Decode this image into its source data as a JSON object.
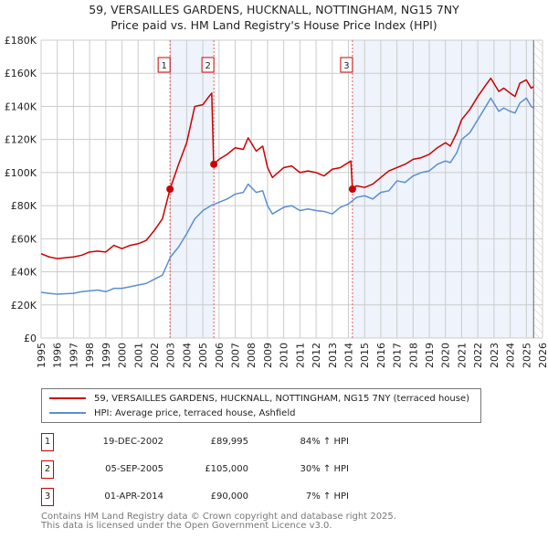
{
  "title_line1": "59, VERSAILLES GARDENS, HUCKNALL, NOTTINGHAM, NG15 7NY",
  "title_line2": "Price paid vs. HM Land Registry's House Price Index (HPI)",
  "colors": {
    "property": "#cc0000",
    "hpi": "#5b8fd0",
    "shade": "#eef3fc"
  },
  "chart_data": {
    "type": "line",
    "title": "Price paid vs. HM Land Registry's House Price Index (HPI)",
    "xlim": [
      1995,
      2026
    ],
    "ylim": [
      0,
      180000
    ],
    "x_ticks": [
      "1995",
      "1996",
      "1997",
      "1998",
      "1999",
      "2000",
      "2001",
      "2002",
      "2003",
      "2004",
      "2005",
      "2006",
      "2007",
      "2008",
      "2009",
      "2010",
      "2011",
      "2012",
      "2013",
      "2014",
      "2015",
      "2016",
      "2017",
      "2018",
      "2019",
      "2020",
      "2021",
      "2022",
      "2023",
      "2024",
      "2025",
      "2026"
    ],
    "y_ticks": [
      {
        "value": 0,
        "label": "£0"
      },
      {
        "value": 20000,
        "label": "£20K"
      },
      {
        "value": 40000,
        "label": "£40K"
      },
      {
        "value": 60000,
        "label": "£60K"
      },
      {
        "value": 80000,
        "label": "£80K"
      },
      {
        "value": 100000,
        "label": "£100K"
      },
      {
        "value": 120000,
        "label": "£120K"
      },
      {
        "value": 140000,
        "label": "£140K"
      },
      {
        "value": 160000,
        "label": "£160K"
      },
      {
        "value": 180000,
        "label": "£180K"
      }
    ],
    "grid": true,
    "series": [
      {
        "name": "59, VERSAILLES GARDENS, HUCKNALL, NOTTINGHAM, NG15 7NY (terraced house)",
        "color": "#cc0000",
        "x": [
          1995,
          1995.5,
          1996,
          1996.5,
          1997,
          1997.5,
          1998,
          1998.5,
          1999,
          1999.5,
          2000,
          2000.5,
          2001,
          2001.5,
          2002,
          2002.5,
          2002.97,
          2003.5,
          2004,
          2004.5,
          2005,
          2005.3,
          2005.55,
          2005.67,
          2006,
          2006.5,
          2007,
          2007.5,
          2007.8,
          2008.3,
          2008.7,
          2009,
          2009.3,
          2010,
          2010.5,
          2011,
          2011.5,
          2012,
          2012.5,
          2013,
          2013.5,
          2014.15,
          2014.25,
          2014.5,
          2015,
          2015.5,
          2016,
          2016.5,
          2017,
          2017.5,
          2018,
          2018.5,
          2019,
          2019.5,
          2020,
          2020.3,
          2020.7,
          2021,
          2021.5,
          2022,
          2022.5,
          2022.8,
          2023.3,
          2023.6,
          2024,
          2024.3,
          2024.6,
          2025,
          2025.3,
          2025.45
        ],
        "y": [
          51000,
          49000,
          48000,
          48500,
          49000,
          50000,
          52000,
          52500,
          52000,
          56000,
          54000,
          56000,
          57000,
          59000,
          65000,
          72000,
          89995,
          105000,
          118000,
          140000,
          141000,
          145000,
          148000,
          105000,
          108000,
          111000,
          115000,
          114000,
          121000,
          113000,
          116000,
          103000,
          97000,
          103000,
          104000,
          100000,
          101000,
          100000,
          98000,
          102000,
          103000,
          107000,
          90000,
          92000,
          91000,
          93000,
          97000,
          101000,
          103000,
          105000,
          108000,
          109000,
          111000,
          115000,
          118000,
          116000,
          124000,
          132000,
          138000,
          146000,
          153000,
          157000,
          149000,
          151000,
          148000,
          146000,
          154000,
          156000,
          151000,
          152000
        ]
      },
      {
        "name": "HPI: Average price, terraced house, Ashfield",
        "color": "#5b8fd0",
        "x": [
          1995,
          1995.5,
          1996,
          1996.5,
          1997,
          1997.5,
          1998,
          1998.5,
          1999,
          1999.5,
          2000,
          2000.5,
          2001,
          2001.5,
          2002,
          2002.5,
          2003,
          2003.5,
          2004,
          2004.5,
          2005,
          2005.5,
          2006,
          2006.5,
          2007,
          2007.5,
          2007.8,
          2008.3,
          2008.7,
          2009,
          2009.3,
          2010,
          2010.5,
          2011,
          2011.5,
          2012,
          2012.5,
          2013,
          2013.5,
          2014,
          2014.5,
          2015,
          2015.5,
          2016,
          2016.5,
          2017,
          2017.5,
          2018,
          2018.5,
          2019,
          2019.5,
          2020,
          2020.3,
          2020.7,
          2021,
          2021.5,
          2022,
          2022.5,
          2022.8,
          2023.3,
          2023.6,
          2024,
          2024.3,
          2024.6,
          2025,
          2025.3,
          2025.45
        ],
        "y": [
          27600,
          27000,
          26500,
          26800,
          27000,
          28000,
          28500,
          29000,
          28000,
          30000,
          30000,
          31000,
          32000,
          33000,
          35500,
          38000,
          49000,
          55000,
          63000,
          72000,
          77000,
          80000,
          82000,
          84000,
          87000,
          88000,
          93000,
          88000,
          89000,
          80000,
          75000,
          79000,
          80000,
          77000,
          78000,
          77000,
          76500,
          75000,
          79000,
          81000,
          85000,
          86000,
          84000,
          88000,
          89000,
          95000,
          94000,
          98000,
          100000,
          101000,
          105000,
          107000,
          106000,
          112000,
          120000,
          124000,
          132000,
          140000,
          145000,
          137000,
          139000,
          137000,
          136000,
          142000,
          145000,
          140000,
          139000
        ]
      }
    ],
    "sales": [
      {
        "label": "1",
        "x": 2002.97,
        "y": 89995
      },
      {
        "label": "2",
        "x": 2005.68,
        "y": 105000
      },
      {
        "label": "3",
        "x": 2014.25,
        "y": 90000
      }
    ],
    "shaded_ranges": [
      [
        2002.97,
        2005.68
      ],
      [
        2014.25,
        2025.45
      ]
    ],
    "forecast_hatch_from": 2025.45,
    "legend_placement": "below"
  },
  "legend": {
    "property": "59, VERSAILLES GARDENS, HUCKNALL, NOTTINGHAM, NG15 7NY (terraced house)",
    "hpi": "HPI: Average price, terraced house, Ashfield"
  },
  "table": [
    {
      "num": "1",
      "date": "19-DEC-2002",
      "price": "£89,995",
      "hpi": "84% ↑ HPI"
    },
    {
      "num": "2",
      "date": "05-SEP-2005",
      "price": "£105,000",
      "hpi": "30% ↑ HPI"
    },
    {
      "num": "3",
      "date": "01-APR-2014",
      "price": "£90,000",
      "hpi": "7% ↑ HPI"
    }
  ],
  "footer_line1": "Contains HM Land Registry data © Crown copyright and database right 2025.",
  "footer_line2": "This data is licensed under the Open Government Licence v3.0."
}
